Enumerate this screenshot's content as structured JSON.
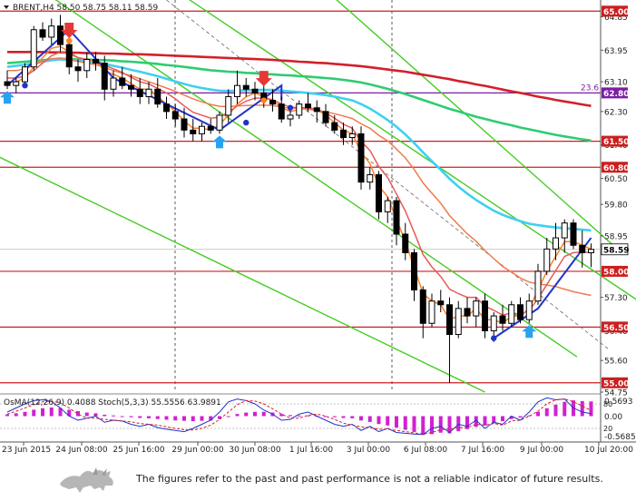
{
  "chart_data": {
    "type": "candlestick",
    "instrument_header": {
      "symbol": "BRENT,H4",
      "open": "58.50",
      "high": "58.75",
      "low": "58.11",
      "close": "58.59"
    },
    "y_axis": {
      "range": [
        54.75,
        65.3
      ],
      "tick_labels": [
        "64.85",
        "63.95",
        "63.10",
        "62.30",
        "61.40",
        "60.50",
        "59.80",
        "58.95",
        "57.30",
        "56.40",
        "55.60",
        "54.75"
      ]
    },
    "x_axis": {
      "tick_labels": [
        "23 Jun 2015",
        "24 Jun 08:00",
        "25 Jun 16:00",
        "29 Jun 00:00",
        "30 Jun 08:00",
        "1 Jul 16:00",
        "3 Jul 00:00",
        "6 Jul 08:00",
        "7 Jul 16:00",
        "9 Jul 00:00",
        "10 Jul 20:00"
      ]
    },
    "horizontal_levels": [
      {
        "value": 65.0,
        "label": "65.00",
        "color": "#cc1f1f"
      },
      {
        "value": 62.8,
        "label": "62.80",
        "color": "#7b1fa2"
      },
      {
        "value": 61.5,
        "label": "61.50",
        "color": "#cc1f1f"
      },
      {
        "value": 60.8,
        "label": "60.80",
        "color": "#cc1f1f"
      },
      {
        "value": 58.0,
        "label": "58.00",
        "color": "#cc1f1f"
      },
      {
        "value": 56.5,
        "label": "56.50",
        "color": "#cc1f1f"
      },
      {
        "value": 55.0,
        "label": "55.00",
        "color": "#cc1f1f"
      }
    ],
    "fib_label": "23.6",
    "current_price": {
      "value": 58.59,
      "label": "58.59"
    },
    "candles": [
      [
        63.1,
        63.4,
        62.9,
        63.0
      ],
      [
        63.0,
        63.2,
        62.8,
        63.1
      ],
      [
        63.1,
        63.6,
        63.0,
        63.5
      ],
      [
        63.5,
        64.6,
        63.4,
        64.5
      ],
      [
        64.5,
        64.7,
        64.2,
        64.3
      ],
      [
        64.3,
        64.8,
        64.1,
        64.6
      ],
      [
        64.6,
        64.9,
        63.9,
        64.1
      ],
      [
        64.1,
        64.3,
        63.3,
        63.5
      ],
      [
        63.5,
        63.7,
        63.1,
        63.4
      ],
      [
        63.4,
        63.9,
        63.2,
        63.7
      ],
      [
        63.7,
        63.9,
        63.4,
        63.6
      ],
      [
        63.6,
        63.8,
        62.6,
        62.9
      ],
      [
        62.9,
        63.4,
        62.7,
        63.2
      ],
      [
        63.2,
        63.5,
        62.9,
        63.0
      ],
      [
        63.0,
        63.3,
        62.7,
        62.9
      ],
      [
        62.9,
        63.2,
        62.5,
        62.7
      ],
      [
        62.7,
        63.1,
        62.5,
        62.9
      ],
      [
        62.9,
        63.2,
        62.4,
        62.5
      ],
      [
        62.5,
        62.7,
        62.1,
        62.3
      ],
      [
        62.3,
        62.5,
        61.9,
        62.1
      ],
      [
        62.1,
        62.4,
        61.6,
        61.8
      ],
      [
        61.8,
        62.1,
        61.5,
        61.7
      ],
      [
        61.7,
        62.0,
        61.5,
        61.9
      ],
      [
        61.9,
        62.1,
        61.7,
        61.8
      ],
      [
        61.8,
        62.3,
        61.7,
        62.2
      ],
      [
        62.2,
        62.9,
        62.0,
        62.7
      ],
      [
        62.7,
        63.4,
        62.5,
        63.0
      ],
      [
        63.0,
        63.2,
        62.7,
        62.9
      ],
      [
        62.9,
        63.1,
        62.6,
        62.8
      ],
      [
        62.8,
        63.0,
        62.4,
        62.6
      ],
      [
        62.6,
        62.9,
        62.3,
        62.5
      ],
      [
        62.5,
        62.7,
        62.0,
        62.1
      ],
      [
        62.1,
        62.4,
        61.9,
        62.2
      ],
      [
        62.2,
        62.6,
        62.1,
        62.5
      ],
      [
        62.5,
        62.8,
        62.3,
        62.4
      ],
      [
        62.4,
        62.6,
        62.0,
        62.3
      ],
      [
        62.3,
        62.5,
        61.9,
        62.0
      ],
      [
        62.0,
        62.2,
        61.7,
        61.8
      ],
      [
        61.8,
        62.0,
        61.4,
        61.6
      ],
      [
        61.6,
        61.9,
        61.4,
        61.7
      ],
      [
        61.7,
        61.9,
        60.2,
        60.4
      ],
      [
        60.4,
        60.8,
        60.2,
        60.6
      ],
      [
        60.6,
        60.7,
        59.4,
        59.6
      ],
      [
        59.6,
        60.0,
        59.3,
        59.9
      ],
      [
        59.9,
        60.0,
        58.7,
        59.0
      ],
      [
        59.0,
        59.3,
        58.3,
        58.5
      ],
      [
        58.5,
        58.6,
        57.2,
        57.5
      ],
      [
        57.5,
        57.6,
        56.2,
        56.6
      ],
      [
        56.6,
        57.4,
        56.5,
        57.2
      ],
      [
        57.2,
        57.5,
        56.9,
        57.1
      ],
      [
        57.1,
        57.3,
        55.0,
        56.3
      ],
      [
        56.3,
        57.2,
        56.2,
        57.0
      ],
      [
        57.0,
        57.3,
        56.6,
        56.8
      ],
      [
        56.8,
        57.3,
        56.5,
        57.2
      ],
      [
        57.2,
        57.4,
        56.2,
        56.4
      ],
      [
        56.4,
        56.9,
        56.1,
        56.8
      ],
      [
        56.8,
        57.1,
        56.4,
        56.6
      ],
      [
        56.6,
        57.2,
        56.5,
        57.1
      ],
      [
        57.1,
        57.3,
        56.6,
        56.7
      ],
      [
        56.7,
        57.4,
        56.6,
        57.2
      ],
      [
        57.2,
        58.2,
        57.1,
        58.0
      ],
      [
        58.0,
        58.9,
        57.9,
        58.6
      ],
      [
        58.6,
        59.3,
        58.3,
        58.9
      ],
      [
        58.9,
        59.4,
        58.5,
        59.3
      ],
      [
        59.3,
        59.4,
        58.6,
        58.7
      ],
      [
        58.7,
        59.1,
        58.1,
        58.5
      ],
      [
        58.5,
        58.75,
        58.11,
        58.59
      ]
    ],
    "moving_averages": [
      {
        "color": "#d2202a",
        "values": [
          63.9,
          63.9,
          63.9,
          63.9,
          63.9,
          63.89,
          63.89,
          63.88,
          63.88,
          63.87,
          63.87,
          63.86,
          63.86,
          63.85,
          63.84,
          63.84,
          63.83,
          63.82,
          63.81,
          63.8,
          63.79,
          63.78,
          63.77,
          63.76,
          63.75,
          63.74,
          63.73,
          63.72,
          63.71,
          63.7,
          63.69,
          63.67,
          63.66,
          63.64,
          63.63,
          63.61,
          63.6,
          63.58,
          63.56,
          63.54,
          63.52,
          63.49,
          63.46,
          63.43,
          63.4,
          63.37,
          63.33,
          63.29,
          63.25,
          63.21,
          63.17,
          63.12,
          63.08,
          63.03,
          62.99,
          62.94,
          62.89,
          62.84,
          62.8,
          62.75,
          62.7,
          62.66,
          62.61,
          62.57,
          62.53,
          62.49,
          62.45
        ]
      },
      {
        "color": "#2ecc71",
        "values": [
          63.6,
          63.62,
          63.64,
          63.66,
          63.68,
          63.7,
          63.71,
          63.71,
          63.7,
          63.7,
          63.69,
          63.68,
          63.67,
          63.65,
          63.64,
          63.62,
          63.6,
          63.58,
          63.55,
          63.53,
          63.5,
          63.47,
          63.44,
          63.41,
          63.39,
          63.37,
          63.36,
          63.34,
          63.33,
          63.31,
          63.3,
          63.28,
          63.27,
          63.25,
          63.24,
          63.22,
          63.2,
          63.18,
          63.15,
          63.12,
          63.08,
          63.03,
          62.97,
          62.91,
          62.84,
          62.77,
          62.69,
          62.61,
          62.53,
          62.45,
          62.37,
          62.3,
          62.23,
          62.16,
          62.1,
          62.04,
          61.98,
          61.93,
          61.87,
          61.82,
          61.77,
          61.72,
          61.67,
          61.63,
          61.59,
          61.55,
          61.52
        ]
      },
      {
        "color": "#3fd0f0",
        "values": [
          63.5,
          63.53,
          63.56,
          63.6,
          63.64,
          63.68,
          63.7,
          63.69,
          63.67,
          63.65,
          63.62,
          63.58,
          63.53,
          63.48,
          63.42,
          63.37,
          63.31,
          63.25,
          63.18,
          63.11,
          63.04,
          62.98,
          62.93,
          62.89,
          62.86,
          62.85,
          62.86,
          62.87,
          62.88,
          62.88,
          62.88,
          62.86,
          62.84,
          62.82,
          62.8,
          62.77,
          62.74,
          62.7,
          62.65,
          62.6,
          62.5,
          62.38,
          62.23,
          62.07,
          61.89,
          61.68,
          61.45,
          61.2,
          60.96,
          60.73,
          60.49,
          60.28,
          60.09,
          59.92,
          59.77,
          59.63,
          59.52,
          59.43,
          59.35,
          59.28,
          59.24,
          59.21,
          59.18,
          59.16,
          59.14,
          59.12,
          59.1
        ]
      },
      {
        "color": "#f07a50",
        "values": [
          63.4,
          63.4,
          63.45,
          63.55,
          63.65,
          63.72,
          63.74,
          63.7,
          63.65,
          63.6,
          63.56,
          63.48,
          63.4,
          63.33,
          63.26,
          63.18,
          63.1,
          63.02,
          62.93,
          62.84,
          62.74,
          62.64,
          62.56,
          62.49,
          62.44,
          62.43,
          62.45,
          62.46,
          62.47,
          62.47,
          62.46,
          62.42,
          62.39,
          62.38,
          62.36,
          62.33,
          62.29,
          62.24,
          62.18,
          62.11,
          61.97,
          61.85,
          61.66,
          61.51,
          61.29,
          61.05,
          60.74,
          60.38,
          60.1,
          59.83,
          59.5,
          59.25,
          59.01,
          58.81,
          58.56,
          58.34,
          58.13,
          57.98,
          57.82,
          57.71,
          57.66,
          57.63,
          57.59,
          57.52,
          57.45,
          57.4,
          57.35
        ]
      },
      {
        "color": "#ff7f2a",
        "values": [
          63.1,
          63.1,
          63.2,
          63.5,
          63.75,
          64.0,
          64.05,
          63.9,
          63.75,
          63.7,
          63.65,
          63.4,
          63.3,
          63.2,
          63.05,
          62.9,
          62.9,
          62.7,
          62.5,
          62.3,
          62.05,
          61.85,
          61.85,
          61.8,
          61.95,
          62.2,
          62.5,
          62.7,
          62.8,
          62.7,
          62.6,
          62.4,
          62.3,
          62.35,
          62.4,
          62.35,
          62.2,
          62.0,
          61.8,
          61.7,
          61.2,
          60.9,
          60.3,
          60.0,
          59.4,
          58.8,
          58.1,
          57.4,
          57.2,
          57.1,
          56.7,
          56.8,
          56.8,
          57.0,
          56.7,
          56.7,
          56.6,
          56.8,
          56.8,
          57.0,
          57.5,
          58.0,
          58.4,
          58.8,
          58.8,
          58.7,
          58.6
        ]
      },
      {
        "color": "#e85a5a",
        "values": [
          63.2,
          63.2,
          63.25,
          63.4,
          63.6,
          63.8,
          63.9,
          63.85,
          63.75,
          63.7,
          63.68,
          63.55,
          63.45,
          63.35,
          63.22,
          63.1,
          63.04,
          62.92,
          62.8,
          62.64,
          62.45,
          62.28,
          62.2,
          62.12,
          62.15,
          62.28,
          62.45,
          62.58,
          62.66,
          62.66,
          62.62,
          62.5,
          62.42,
          62.4,
          62.4,
          62.36,
          62.26,
          62.12,
          61.96,
          61.85,
          61.5,
          61.25,
          60.82,
          60.52,
          60.08,
          59.62,
          59.05,
          58.45,
          58.12,
          57.86,
          57.52,
          57.4,
          57.3,
          57.3,
          57.06,
          56.95,
          56.82,
          56.88,
          56.84,
          56.95,
          57.26,
          57.65,
          58.02,
          58.4,
          58.5,
          58.52,
          58.5
        ]
      }
    ],
    "sell_markers": [
      {
        "index": 7,
        "label": "sell-arrow"
      },
      {
        "index": 29,
        "label": "sell-arrow"
      }
    ],
    "buy_markers": [
      {
        "index": 0,
        "label": "buy-arrow"
      },
      {
        "index": 24,
        "label": "buy-arrow"
      },
      {
        "index": 59,
        "label": "buy-arrow"
      }
    ],
    "oscillator": {
      "header": "OsMA(12,26,9) 0.4088  Stoch(5,3,3) 55.5556 63.9891",
      "tick_labels": [
        "0.5693",
        "0.00",
        "-0.5685"
      ],
      "extra_labels": [
        "80",
        "20"
      ],
      "range": [
        -0.5685,
        0.5693
      ],
      "osma": [
        0.05,
        0.08,
        0.12,
        0.18,
        0.22,
        0.24,
        0.23,
        0.18,
        0.14,
        0.1,
        0.08,
        0.04,
        0.02,
        -0.01,
        -0.03,
        -0.05,
        -0.06,
        -0.08,
        -0.1,
        -0.12,
        -0.13,
        -0.14,
        -0.13,
        -0.12,
        -0.08,
        -0.02,
        0.06,
        0.1,
        0.12,
        0.12,
        0.1,
        0.06,
        0.03,
        0.02,
        0.02,
        0.01,
        -0.01,
        -0.03,
        -0.05,
        -0.06,
        -0.12,
        -0.16,
        -0.22,
        -0.26,
        -0.32,
        -0.38,
        -0.44,
        -0.52,
        -0.5,
        -0.46,
        -0.48,
        -0.42,
        -0.36,
        -0.3,
        -0.26,
        -0.2,
        -0.14,
        -0.08,
        -0.04,
        0.02,
        0.12,
        0.22,
        0.32,
        0.4,
        0.44,
        0.42,
        0.41
      ],
      "stoch_main": [
        60,
        70,
        80,
        88,
        90,
        86,
        70,
        50,
        40,
        45,
        50,
        35,
        40,
        38,
        30,
        25,
        30,
        22,
        18,
        15,
        12,
        20,
        30,
        40,
        60,
        85,
        92,
        88,
        80,
        65,
        55,
        40,
        42,
        55,
        60,
        50,
        40,
        30,
        25,
        30,
        15,
        25,
        12,
        20,
        10,
        8,
        6,
        5,
        20,
        25,
        10,
        30,
        25,
        40,
        20,
        35,
        30,
        50,
        40,
        60,
        85,
        95,
        90,
        92,
        70,
        60,
        56
      ],
      "stoch_signal": [
        55,
        62,
        70,
        78,
        85,
        87,
        82,
        70,
        55,
        45,
        45,
        42,
        40,
        38,
        36,
        32,
        30,
        28,
        24,
        20,
        17,
        16,
        20,
        28,
        42,
        60,
        78,
        88,
        87,
        80,
        68,
        55,
        45,
        45,
        52,
        55,
        50,
        42,
        33,
        28,
        24,
        22,
        18,
        18,
        15,
        12,
        9,
        6,
        10,
        17,
        18,
        22,
        22,
        30,
        28,
        32,
        28,
        38,
        40,
        50,
        62,
        80,
        90,
        92,
        85,
        75,
        64
      ]
    }
  },
  "footer": {
    "disclaimer": "The figures refer to the past and past performance is not a reliable indicator of future results."
  }
}
